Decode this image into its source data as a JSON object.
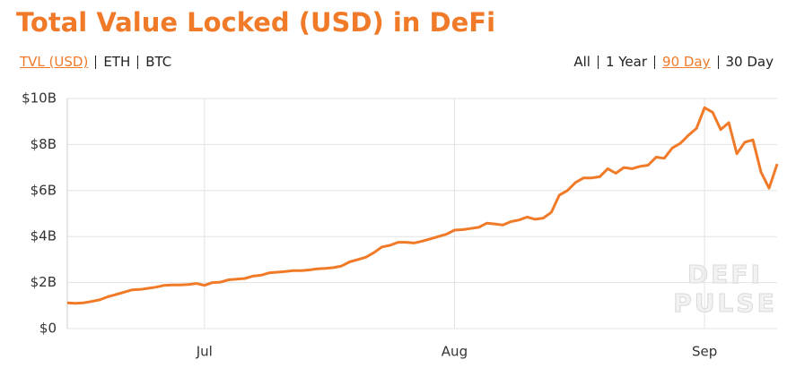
{
  "chart_data": {
    "type": "line",
    "title": "Total Value Locked (USD) in DeFi",
    "color": "#f07a28",
    "values": [
      1.12,
      1.1,
      1.12,
      1.18,
      1.25,
      1.38,
      1.48,
      1.58,
      1.68,
      1.7,
      1.75,
      1.8,
      1.88,
      1.9,
      1.9,
      1.92,
      1.96,
      1.88,
      2.0,
      2.02,
      2.12,
      2.15,
      2.18,
      2.28,
      2.32,
      2.42,
      2.45,
      2.48,
      2.52,
      2.52,
      2.55,
      2.6,
      2.62,
      2.65,
      2.72,
      2.9,
      3.0,
      3.1,
      3.3,
      3.55,
      3.62,
      3.75,
      3.75,
      3.72,
      3.8,
      3.9,
      4.0,
      4.1,
      4.28,
      4.3,
      4.35,
      4.4,
      4.58,
      4.55,
      4.5,
      4.65,
      4.72,
      4.85,
      4.75,
      4.8,
      5.05,
      5.8,
      6.0,
      6.35,
      6.55,
      6.55,
      6.6,
      6.95,
      6.75,
      7.0,
      6.95,
      7.05,
      7.1,
      7.45,
      7.4,
      7.85,
      8.05,
      8.4,
      8.7,
      9.6,
      9.4,
      8.65,
      8.95,
      7.6,
      8.1,
      8.2,
      6.8,
      6.1,
      7.15
    ],
    "xlim": [
      0,
      88
    ],
    "xticks": [
      {
        "value": 17,
        "label": "Jul"
      },
      {
        "value": 48,
        "label": "Aug"
      },
      {
        "value": 79,
        "label": "Sep"
      }
    ],
    "ylim": [
      0,
      10
    ],
    "yticks": [
      {
        "value": 0,
        "label": "$0"
      },
      {
        "value": 2,
        "label": "$2B"
      },
      {
        "value": 4,
        "label": "$4B"
      },
      {
        "value": 6,
        "label": "$6B"
      },
      {
        "value": 8,
        "label": "$8B"
      },
      {
        "value": 10,
        "label": "$10B"
      }
    ],
    "grid": true,
    "watermark": [
      "DEFI",
      "PULSE"
    ]
  },
  "controls": {
    "metric_options": [
      "TVL (USD)",
      "ETH",
      "BTC"
    ],
    "selected_metric": 0,
    "range_options": [
      "All",
      "1 Year",
      "90 Day",
      "30 Day"
    ],
    "selected_range": 2
  }
}
